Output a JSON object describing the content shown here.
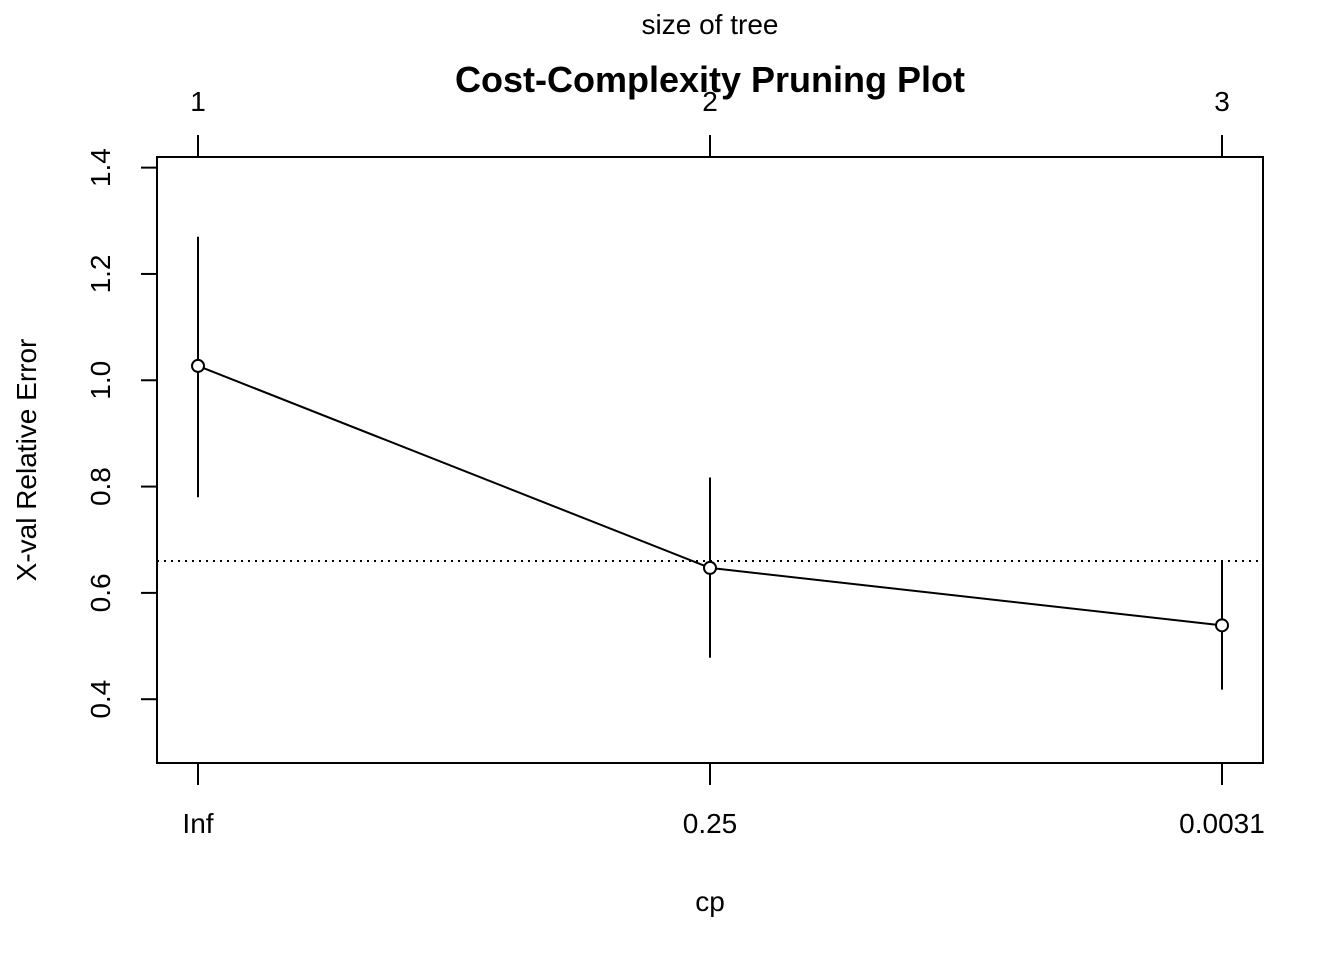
{
  "chart_data": {
    "type": "line",
    "title": "Cost-Complexity Pruning Plot",
    "xlabel": "cp",
    "ylabel": "X-val Relative Error",
    "top_axis_label": "size of tree",
    "x_tick_labels": [
      "Inf",
      "0.25",
      "0.0031"
    ],
    "top_tick_labels": [
      "1",
      "2",
      "3"
    ],
    "y_ticks": [
      0.4,
      0.6,
      0.8,
      1.0,
      1.2,
      1.4
    ],
    "y_tick_labels": [
      "0.4",
      "0.6",
      "0.8",
      "1.0",
      "1.2",
      "1.4"
    ],
    "ylim": [
      0.28,
      1.42
    ],
    "points": [
      {
        "cp": "Inf",
        "size": 1,
        "xerror": 1.027,
        "lower": 0.78,
        "upper": 1.27
      },
      {
        "cp": "0.25",
        "size": 2,
        "xerror": 0.647,
        "lower": 0.478,
        "upper": 0.817
      },
      {
        "cp": "0.0031",
        "size": 3,
        "xerror": 0.539,
        "lower": 0.418,
        "upper": 0.66
      }
    ],
    "reference_line": {
      "y": 0.66,
      "style": "dotted"
    },
    "grid": false
  }
}
